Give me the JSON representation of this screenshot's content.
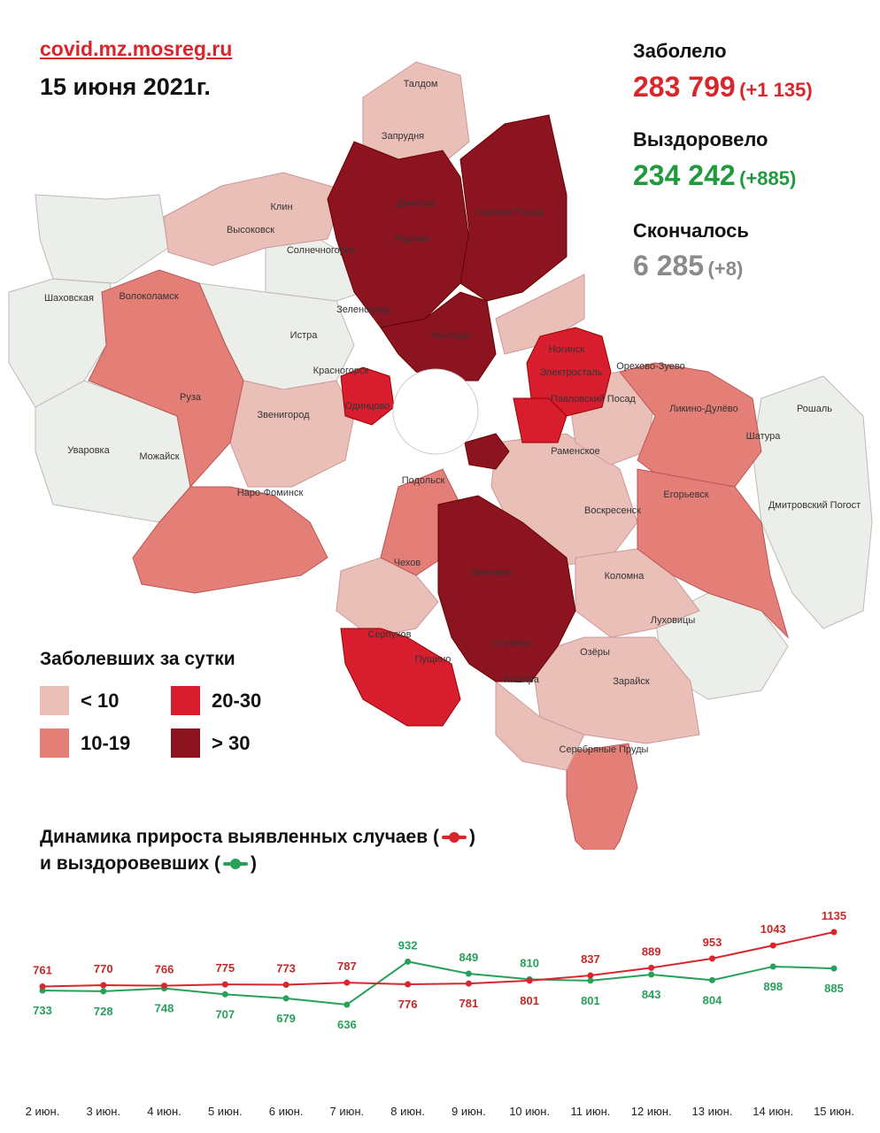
{
  "header": {
    "site": "covid.mz.mosreg.ru",
    "date": "15 июня 2021г."
  },
  "stats": {
    "infected": {
      "label": "Заболело",
      "value": "283 799",
      "delta": "(+1 135)",
      "color": "#d7262c"
    },
    "recovered": {
      "label": "Выздоровело",
      "value": "234 242",
      "delta": "(+885)",
      "color": "#1f9a3c"
    },
    "deceased": {
      "label": "Скончалось",
      "value": "6 285",
      "delta": "(+8)",
      "color": "#8a8a8a"
    }
  },
  "legend": {
    "title": "Заболевших за сутки",
    "items": [
      {
        "label": "< 10",
        "color": "#e9bfb8"
      },
      {
        "label": "10-19",
        "color": "#e47f78"
      },
      {
        "label": "20-30",
        "color": "#d81e2e"
      },
      {
        "label": "> 30",
        "color": "#8c1420"
      }
    ]
  },
  "map": {
    "labels": [
      "Талдом",
      "Запрудня",
      "Дмитров",
      "Сергиев Посад",
      "Яхрома",
      "Клин",
      "Высоковск",
      "Солнечногорск",
      "Шаховская",
      "Волоколамск",
      "Зеленоград",
      "Истра",
      "Мытищи",
      "Красногорск",
      "Ногинск",
      "Электросталь",
      "Орехово-Зуево",
      "Павловский Посад",
      "Ликино-Дулёво",
      "Рошаль",
      "Звенигород",
      "Одинцово",
      "Руза",
      "Шатура",
      "Уваровка",
      "Можайск",
      "Раменское",
      "Наро-Фоминск",
      "Подольск",
      "Егорьевск",
      "Дмитровский Погост",
      "Воскресенск",
      "Чехов",
      "Михнево",
      "Коломна",
      "Луховицы",
      "Серпухов",
      "Пущино",
      "Ступино",
      "Озёры",
      "Кашира",
      "Зарайск",
      "Серебряные Пруды"
    ]
  },
  "dynamics": {
    "line1": "Динамика прироста выявленных случаев (",
    "line1_end": ")",
    "line2": "и выздоровевших (",
    "line2_end": ")"
  },
  "chart_data": {
    "type": "line",
    "categories": [
      "2 июн.",
      "3 июн.",
      "4 июн.",
      "5 июн.",
      "6 июн.",
      "7 июн.",
      "8 июн.",
      "9 июн.",
      "10 июн.",
      "11 июн.",
      "12 июн.",
      "13 июн.",
      "14 июн.",
      "15 июн."
    ],
    "series": [
      {
        "color": "#d7262c",
        "values": [
          761,
          770,
          766,
          775,
          773,
          787,
          776,
          781,
          801,
          837,
          889,
          953,
          1043,
          1135
        ]
      },
      {
        "color": "#27a05a",
        "values": [
          733,
          728,
          748,
          707,
          679,
          636,
          932,
          849,
          810,
          801,
          843,
          804,
          898,
          885
        ]
      }
    ],
    "label_positions": {
      "red": [
        "above",
        "above",
        "above",
        "above",
        "above",
        "above",
        "below",
        "below",
        "below",
        "above",
        "above",
        "above",
        "above",
        "above"
      ],
      "green": [
        "below",
        "below",
        "below",
        "below",
        "below",
        "below",
        "above",
        "above",
        "above",
        "below",
        "below",
        "below",
        "below",
        "below"
      ]
    },
    "ylim": [
      500,
      1300
    ]
  }
}
